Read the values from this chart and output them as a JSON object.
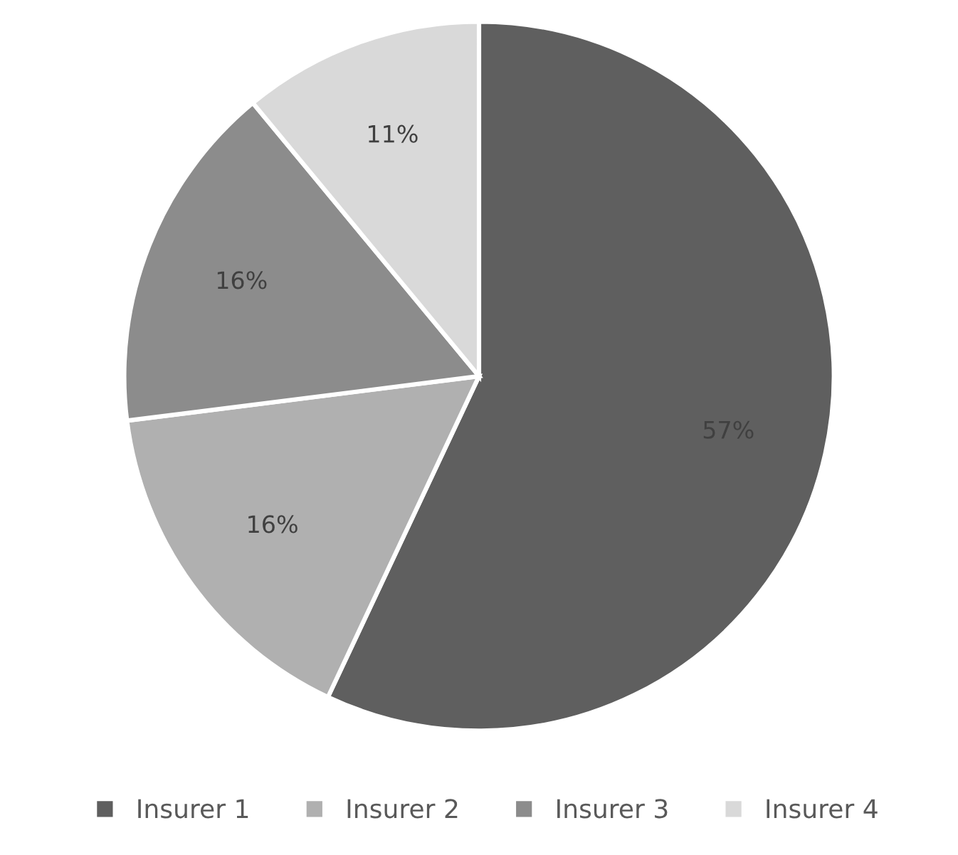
{
  "chart_data": {
    "type": "pie",
    "categories": [
      "Insurer 1",
      "Insurer 2",
      "Insurer 3",
      "Insurer 4"
    ],
    "values": [
      57,
      16,
      16,
      11
    ],
    "value_labels": [
      "57%",
      "16%",
      "16%",
      "11%"
    ],
    "colors": [
      "#5f5f5f",
      "#b0b0b0",
      "#8c8c8c",
      "#d9d9d9"
    ],
    "legend": "bottom"
  }
}
